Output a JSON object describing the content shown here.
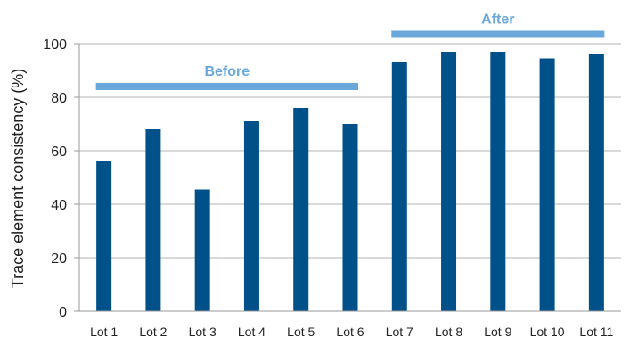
{
  "chart_data": {
    "type": "bar",
    "title": "",
    "xlabel": "",
    "ylabel": "Trace element consistency (%)",
    "categories": [
      "Lot 1",
      "Lot 2",
      "Lot 3",
      "Lot 4",
      "Lot 5",
      "Lot 6",
      "Lot 7",
      "Lot 8",
      "Lot 9",
      "Lot 10",
      "Lot 11"
    ],
    "values": [
      56,
      68,
      45.5,
      71,
      76,
      70,
      93,
      97,
      97,
      94.5,
      96
    ],
    "ylim": [
      0,
      100
    ],
    "yticks": [
      0,
      20,
      40,
      60,
      80,
      100
    ],
    "grid": true,
    "annotations": [
      {
        "label": "Before",
        "from_category": "Lot 1",
        "to_category": "Lot 6",
        "level": 84
      },
      {
        "label": "After",
        "from_category": "Lot 7",
        "to_category": "Lot 11",
        "level": 103.5
      }
    ]
  },
  "colors": {
    "bar": "#005189",
    "annotation": "#6aa8dc",
    "grid": "#b3b3b3",
    "axis": "#999999",
    "text": "#222222"
  }
}
